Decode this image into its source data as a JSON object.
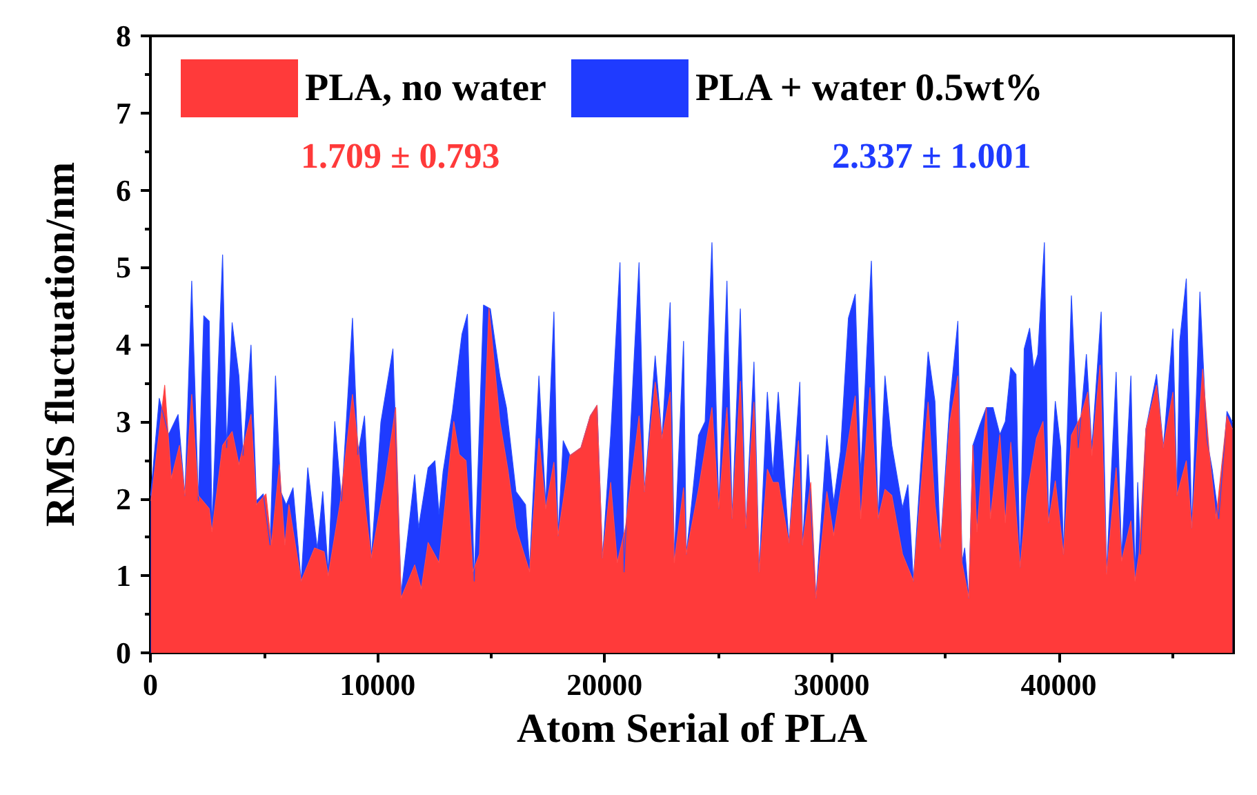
{
  "chart_data": {
    "type": "area",
    "xlabel": "Atom Serial of PLA",
    "ylabel": "RMS fluctuation/nm",
    "xlim": [
      0,
      47700
    ],
    "xticks": [
      0,
      10000,
      20000,
      30000,
      40000
    ],
    "ylim": [
      0,
      8
    ],
    "yticks": [
      0,
      1,
      2,
      3,
      4,
      5,
      6,
      7,
      8
    ],
    "grid": false,
    "legend": "top left",
    "annotations": [
      "1.709 ± 0.793",
      "2.337 ± 1.001"
    ],
    "series": [
      {
        "name": "PLA + water 0.5wt%",
        "color": "#1f3bff",
        "x": [
          10,
          390,
          800,
          1220,
          1520,
          1820,
          2110,
          2350,
          2590,
          2710,
          3180,
          3360,
          3600,
          3900,
          4080,
          4430,
          4670,
          4970,
          5270,
          5510,
          5740,
          5980,
          6280,
          6640,
          6930,
          7350,
          7590,
          7830,
          8120,
          8420,
          8900,
          9140,
          9430,
          9730,
          10150,
          10680,
          11040,
          11640,
          11810,
          12230,
          12530,
          12710,
          12890,
          13300,
          13720,
          13960,
          14260,
          14670,
          14970,
          15390,
          15680,
          16100,
          16520,
          16700,
          17110,
          17410,
          17770,
          17950,
          18180,
          18480,
          18960,
          19370,
          19670,
          19910,
          20270,
          20680,
          20860,
          21160,
          21520,
          21760,
          22230,
          22530,
          22890,
          23070,
          23480,
          23600,
          23840,
          24140,
          24430,
          24730,
          25030,
          25390,
          25620,
          25980,
          26220,
          26580,
          26810,
          27170,
          27410,
          27650,
          28120,
          28600,
          28720,
          28960,
          29310,
          29790,
          30090,
          30390,
          30740,
          31040,
          31280,
          31750,
          32050,
          32350,
          32650,
          33120,
          33360,
          33600,
          34250,
          34550,
          34790,
          35210,
          35560,
          35740,
          35860,
          36040,
          36220,
          36520,
          36810,
          37110,
          37410,
          37650,
          37890,
          38120,
          38300,
          38480,
          38720,
          38900,
          39080,
          39370,
          39550,
          39850,
          40090,
          40210,
          40560,
          40860,
          41220,
          41460,
          41870,
          42110,
          42530,
          42770,
          43180,
          43360,
          43480,
          43600,
          43840,
          44310,
          44610,
          45030,
          45210,
          45330,
          45620,
          45860,
          46220,
          46520,
          46760,
          47050,
          47410,
          47650
        ],
        "values": [
          2.04,
          3.3,
          2.83,
          3.09,
          2.04,
          4.82,
          1.97,
          4.37,
          4.3,
          1.62,
          5.16,
          2.66,
          4.28,
          3.59,
          2.56,
          3.99,
          1.97,
          2.06,
          1.4,
          3.59,
          2.09,
          1.92,
          2.14,
          0.93,
          2.4,
          1.35,
          2.09,
          1.05,
          3.0,
          1.97,
          4.34,
          2.57,
          3.07,
          1.23,
          2.99,
          3.94,
          0.76,
          2.31,
          1.62,
          2.4,
          2.49,
          1.8,
          2.35,
          3.13,
          4.13,
          4.39,
          0.93,
          4.51,
          4.46,
          3.59,
          3.18,
          2.09,
          1.92,
          1.11,
          3.59,
          1.92,
          4.42,
          1.52,
          2.75,
          2.56,
          2.66,
          3.07,
          3.21,
          1.23,
          2.82,
          5.06,
          1.05,
          3.0,
          5.06,
          2.09,
          3.85,
          2.78,
          4.54,
          1.23,
          4.04,
          1.28,
          1.95,
          2.82,
          3.0,
          5.32,
          1.87,
          4.82,
          1.74,
          4.46,
          1.62,
          3.77,
          1.05,
          3.38,
          2.31,
          3.38,
          1.43,
          3.51,
          1.4,
          2.57,
          0.71,
          2.82,
          1.95,
          2.61,
          4.34,
          4.65,
          2.31,
          5.08,
          1.74,
          3.59,
          2.69,
          1.88,
          2.18,
          0.93,
          3.9,
          3.26,
          1.35,
          3.25,
          4.3,
          1.17,
          1.36,
          0.71,
          2.69,
          2.95,
          3.18,
          3.18,
          2.83,
          3.0,
          3.7,
          3.61,
          1.11,
          3.94,
          4.21,
          3.68,
          3.87,
          5.32,
          1.69,
          3.26,
          2.66,
          1.28,
          4.63,
          2.66,
          3.87,
          2.66,
          4.42,
          1.05,
          3.64,
          1.23,
          3.59,
          1.0,
          2.21,
          1.28,
          2.9,
          3.61,
          2.66,
          4.2,
          2.04,
          4.04,
          4.85,
          1.62,
          4.68,
          2.78,
          2.38,
          1.74,
          3.13,
          2.99
        ]
      },
      {
        "name": "PLA, no water",
        "color": "#ff3a3a",
        "x": [
          30,
          630,
          920,
          1280,
          1520,
          1820,
          2110,
          2590,
          2710,
          3180,
          3600,
          3900,
          4430,
          4670,
          5090,
          5330,
          5680,
          5920,
          6100,
          6640,
          7230,
          7650,
          7830,
          8360,
          8900,
          9260,
          9730,
          10330,
          10800,
          11040,
          11640,
          11930,
          12230,
          12710,
          13360,
          13600,
          13900,
          14200,
          14490,
          14910,
          15390,
          15740,
          16100,
          16700,
          17110,
          17410,
          17770,
          17950,
          18480,
          18960,
          19370,
          19670,
          19910,
          20270,
          20560,
          20920,
          21520,
          21760,
          22230,
          22530,
          22890,
          23070,
          23480,
          23600,
          24140,
          24730,
          25030,
          25390,
          25620,
          25980,
          26220,
          26580,
          26810,
          27170,
          27410,
          27650,
          28120,
          28540,
          28720,
          29080,
          29310,
          29790,
          30090,
          31040,
          31280,
          31690,
          32050,
          32350,
          32650,
          33120,
          33600,
          34250,
          34550,
          34790,
          35210,
          35560,
          35740,
          36040,
          36220,
          36400,
          36810,
          36990,
          37410,
          37650,
          37890,
          38300,
          38600,
          39020,
          39310,
          39550,
          39850,
          40210,
          40560,
          40980,
          41280,
          41460,
          41820,
          42110,
          42530,
          42770,
          43180,
          43360,
          43540,
          43840,
          44310,
          44610,
          45030,
          45210,
          45620,
          45860,
          46340,
          46640,
          46930,
          47410,
          47650
        ],
        "values": [
          1.97,
          3.47,
          2.26,
          2.69,
          2.04,
          3.35,
          2.04,
          1.87,
          1.57,
          2.69,
          2.87,
          2.44,
          3.09,
          1.92,
          2.06,
          1.4,
          2.44,
          1.4,
          1.92,
          0.93,
          1.36,
          1.31,
          1.0,
          1.95,
          3.35,
          2.38,
          1.23,
          2.23,
          3.18,
          0.71,
          1.14,
          0.83,
          1.43,
          1.17,
          3.0,
          2.57,
          2.49,
          1.05,
          1.28,
          4.47,
          3.0,
          2.38,
          1.62,
          1.05,
          2.78,
          1.87,
          2.47,
          1.52,
          2.56,
          2.66,
          3.07,
          3.21,
          1.23,
          2.21,
          1.17,
          1.62,
          3.07,
          2.09,
          3.51,
          2.78,
          3.38,
          1.17,
          2.14,
          1.28,
          2.12,
          3.18,
          1.87,
          3.18,
          1.74,
          3.52,
          1.62,
          3.25,
          1.05,
          2.38,
          2.21,
          2.21,
          1.43,
          2.75,
          1.4,
          2.21,
          0.71,
          2.09,
          1.52,
          3.33,
          1.74,
          3.44,
          1.74,
          2.12,
          2.04,
          1.28,
          0.93,
          3.25,
          1.92,
          1.35,
          3.0,
          3.59,
          1.17,
          0.71,
          2.69,
          1.57,
          3.18,
          1.74,
          2.83,
          1.69,
          2.73,
          1.11,
          2.04,
          2.78,
          3.0,
          1.69,
          2.23,
          1.28,
          2.82,
          3.07,
          3.38,
          2.56,
          3.73,
          1.02,
          2.4,
          1.19,
          1.71,
          0.93,
          1.28,
          2.9,
          3.47,
          2.66,
          3.38,
          2.04,
          2.49,
          1.62,
          3.68,
          2.56,
          1.74,
          3.07,
          2.9
        ]
      }
    ]
  }
}
